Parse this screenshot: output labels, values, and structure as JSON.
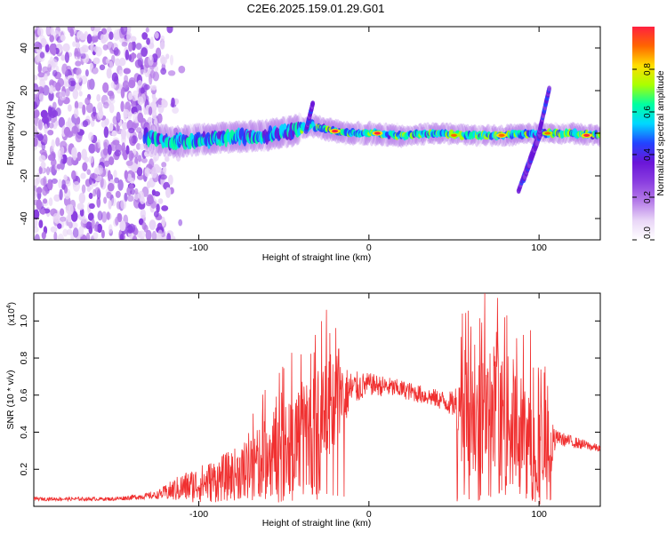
{
  "title": "C2E6.2025.159.01.29.G01",
  "colors": {
    "snr_line": "#f03030",
    "axis": "#000000",
    "colormap": [
      "#ffffff",
      "#e9d6f7",
      "#b57be8",
      "#8a3ee0",
      "#6a15d8",
      "#2244ff",
      "#00d8ff",
      "#00ffa0",
      "#aaff00",
      "#ffdd00",
      "#ff6600",
      "#ff2040"
    ]
  },
  "chart_data": [
    {
      "type": "heatmap",
      "name": "spectrogram",
      "xlabel": "Height of straight line (km)",
      "ylabel": "Frequency (Hz)",
      "xlim": [
        -197,
        136
      ],
      "ylim": [
        -50,
        50
      ],
      "xticks": [
        -100,
        0,
        100
      ],
      "xtick_labels": [
        "-100",
        "0",
        "100"
      ],
      "yticks": [
        -40,
        -20,
        0,
        20,
        40
      ],
      "ytick_labels": [
        "-40",
        "-20",
        "0",
        "20",
        "40"
      ],
      "colorbar": {
        "label": "Normalized spectral amplitude",
        "range": [
          0,
          1
        ],
        "ticks": [
          0.0,
          0.2,
          0.4,
          0.6,
          0.8
        ],
        "tick_labels": [
          "0.0",
          "0.2",
          "0.4",
          "0.6",
          "0.8"
        ]
      },
      "noise_region_x": [
        -197,
        -120
      ],
      "ridge": [
        {
          "x": -130,
          "f": -2
        },
        {
          "x": -115,
          "f": -4
        },
        {
          "x": -100,
          "f": -3
        },
        {
          "x": -80,
          "f": -2
        },
        {
          "x": -60,
          "f": -1
        },
        {
          "x": -45,
          "f": 1
        },
        {
          "x": -35,
          "f": 4
        },
        {
          "x": -25,
          "f": 2
        },
        {
          "x": -15,
          "f": 0
        },
        {
          "x": 0,
          "f": 0
        },
        {
          "x": 20,
          "f": -1
        },
        {
          "x": 40,
          "f": 0
        },
        {
          "x": 60,
          "f": -1
        },
        {
          "x": 80,
          "f": -1
        },
        {
          "x": 100,
          "f": 0
        },
        {
          "x": 120,
          "f": 0
        },
        {
          "x": 136,
          "f": -1
        }
      ],
      "hot_spots": [
        {
          "x": -20,
          "f": 1,
          "level": 1.0
        },
        {
          "x": 5,
          "f": 0,
          "level": 1.0
        },
        {
          "x": 50,
          "f": -1,
          "level": 0.9
        },
        {
          "x": 78,
          "f": -1,
          "level": 0.95
        },
        {
          "x": 105,
          "f": 0,
          "level": 0.9
        },
        {
          "x": 128,
          "f": -1,
          "level": 1.0
        }
      ],
      "streaks": [
        {
          "x0": 88,
          "f0": -27,
          "x1": 100,
          "f1": 0
        },
        {
          "x0": 91,
          "f0": -22,
          "x1": 101,
          "f1": 0
        },
        {
          "x0": 100,
          "f0": 0,
          "x1": 106,
          "f1": 21
        },
        {
          "x0": -37,
          "f0": 1,
          "x1": -33,
          "f1": 14
        }
      ]
    },
    {
      "type": "line",
      "name": "snr",
      "xlabel": "Height of straight line (km)",
      "ylabel": "SNR (10 * v/v)",
      "multiplier_label": "(x10",
      "multiplier_exp": "4",
      "xlim": [
        -197,
        136
      ],
      "ylim": [
        0,
        1.15
      ],
      "xticks": [
        -100,
        0,
        100
      ],
      "xtick_labels": [
        "-100",
        "0",
        "100"
      ],
      "yticks": [
        0.2,
        0.4,
        0.6,
        0.8,
        1.0
      ],
      "ytick_labels": [
        "0.2",
        "0.4",
        "0.6",
        "0.8",
        "1.0"
      ],
      "envelope": [
        {
          "x": -197,
          "base": 0.04,
          "amp": 0.01
        },
        {
          "x": -150,
          "base": 0.04,
          "amp": 0.01
        },
        {
          "x": -125,
          "base": 0.06,
          "amp": 0.02
        },
        {
          "x": -110,
          "base": 0.1,
          "amp": 0.08
        },
        {
          "x": -90,
          "base": 0.14,
          "amp": 0.12
        },
        {
          "x": -70,
          "base": 0.2,
          "amp": 0.16
        },
        {
          "x": -55,
          "base": 0.3,
          "amp": 0.25
        },
        {
          "x": -40,
          "base": 0.38,
          "amp": 0.3
        },
        {
          "x": -30,
          "base": 0.4,
          "amp": 0.35
        },
        {
          "x": -20,
          "base": 0.55,
          "amp": 0.25
        },
        {
          "x": -10,
          "base": 0.63,
          "amp": 0.1
        },
        {
          "x": 0,
          "base": 0.66,
          "amp": 0.06
        },
        {
          "x": 20,
          "base": 0.63,
          "amp": 0.05
        },
        {
          "x": 40,
          "base": 0.58,
          "amp": 0.05
        },
        {
          "x": 50,
          "base": 0.55,
          "amp": 0.07
        },
        {
          "x": 55,
          "base": 0.5,
          "amp": 0.35
        },
        {
          "x": 70,
          "base": 0.45,
          "amp": 0.4
        },
        {
          "x": 85,
          "base": 0.45,
          "amp": 0.35
        },
        {
          "x": 95,
          "base": 0.3,
          "amp": 0.3
        },
        {
          "x": 105,
          "base": 0.3,
          "amp": 0.3
        },
        {
          "x": 110,
          "base": 0.37,
          "amp": 0.04
        },
        {
          "x": 136,
          "base": 0.31,
          "amp": 0.02
        }
      ],
      "peaks": [
        {
          "x": -25,
          "y": 1.06
        },
        {
          "x": -40,
          "y": 0.82
        },
        {
          "x": 55,
          "y": 1.04
        },
        {
          "x": 68,
          "y": 1.15
        },
        {
          "x": 60,
          "y": 0.97
        },
        {
          "x": 95,
          "y": 0.95
        }
      ]
    }
  ]
}
